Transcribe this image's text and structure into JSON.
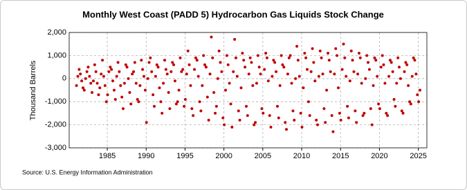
{
  "chart_data": {
    "type": "scatter",
    "title": "Monthly West Coast (PADD 5) Hydrocarbon Gas Liquids Stock Change",
    "y_label": "Thousand Barrels",
    "source": "Source: U.S. Energy Information Administration",
    "color": "#c00000",
    "grid": true,
    "xlim": [
      1980.1,
      2026.1
    ],
    "xticks": [
      1985,
      1990,
      1995,
      2000,
      2005,
      2010,
      2015,
      2020,
      2025
    ],
    "ylim": [
      -3000,
      2000
    ],
    "yticks": [
      {
        "value": -3000,
        "label": "-3,000"
      },
      {
        "value": -2000,
        "label": "-2,000"
      },
      {
        "value": -1000,
        "label": "-1,000"
      },
      0,
      {
        "value": 1000,
        "label": "1,000"
      },
      {
        "value": 2000,
        "label": "2,000"
      }
    ],
    "x": [
      1981.04,
      1981.21,
      1981.38,
      1981.54,
      1981.71,
      1981.88,
      1982.04,
      1982.21,
      1982.38,
      1982.54,
      1982.71,
      1982.88,
      1983.04,
      1983.21,
      1983.38,
      1983.54,
      1983.71,
      1983.88,
      1984.04,
      1984.21,
      1984.38,
      1984.54,
      1984.71,
      1984.88,
      1985.04,
      1985.21,
      1985.38,
      1985.54,
      1985.71,
      1985.88,
      1986.04,
      1986.21,
      1986.38,
      1986.54,
      1986.71,
      1986.88,
      1987.04,
      1987.21,
      1987.38,
      1987.54,
      1987.71,
      1987.88,
      1988.04,
      1988.21,
      1988.38,
      1988.54,
      1988.71,
      1988.88,
      1989.04,
      1989.21,
      1989.38,
      1989.54,
      1989.71,
      1989.88,
      1990.04,
      1990.21,
      1990.38,
      1990.54,
      1990.71,
      1990.88,
      1991.04,
      1991.21,
      1991.38,
      1991.54,
      1991.71,
      1991.88,
      1992.04,
      1992.21,
      1992.38,
      1992.54,
      1992.71,
      1992.88,
      1993.04,
      1993.21,
      1993.38,
      1993.54,
      1993.71,
      1993.88,
      1994.04,
      1994.21,
      1994.38,
      1994.54,
      1994.71,
      1994.88,
      1995.04,
      1995.21,
      1995.38,
      1995.54,
      1995.71,
      1995.88,
      1996.04,
      1996.21,
      1996.38,
      1996.54,
      1996.71,
      1996.88,
      1997.04,
      1997.21,
      1997.38,
      1997.54,
      1997.71,
      1997.88,
      1998.04,
      1998.21,
      1998.38,
      1998.54,
      1998.71,
      1998.88,
      1999.04,
      1999.21,
      1999.38,
      1999.54,
      1999.71,
      1999.88,
      2000.04,
      2000.21,
      2000.38,
      2000.54,
      2000.71,
      2000.88,
      2001.04,
      2001.21,
      2001.38,
      2001.54,
      2001.71,
      2001.88,
      2002.04,
      2002.21,
      2002.38,
      2002.54,
      2002.71,
      2002.88,
      2003.04,
      2003.21,
      2003.38,
      2003.54,
      2003.71,
      2003.88,
      2004.04,
      2004.21,
      2004.38,
      2004.54,
      2004.71,
      2004.88,
      2005.04,
      2005.21,
      2005.38,
      2005.54,
      2005.71,
      2005.88,
      2006.04,
      2006.21,
      2006.38,
      2006.54,
      2006.71,
      2006.88,
      2007.04,
      2007.21,
      2007.38,
      2007.54,
      2007.71,
      2007.88,
      2008.04,
      2008.21,
      2008.38,
      2008.54,
      2008.71,
      2008.88,
      2009.04,
      2009.21,
      2009.38,
      2009.54,
      2009.71,
      2009.88,
      2010.04,
      2010.21,
      2010.38,
      2010.54,
      2010.71,
      2010.88,
      2011.04,
      2011.21,
      2011.38,
      2011.54,
      2011.71,
      2011.88,
      2012.04,
      2012.21,
      2012.38,
      2012.54,
      2012.71,
      2012.88,
      2013.04,
      2013.21,
      2013.38,
      2013.54,
      2013.71,
      2013.88,
      2014.04,
      2014.21,
      2014.38,
      2014.54,
      2014.71,
      2014.88,
      2015.04,
      2015.21,
      2015.38,
      2015.54,
      2015.71,
      2015.88,
      2016.04,
      2016.21,
      2016.38,
      2016.54,
      2016.71,
      2016.88,
      2017.04,
      2017.21,
      2017.38,
      2017.54,
      2017.71,
      2017.88,
      2018.04,
      2018.21,
      2018.38,
      2018.54,
      2018.71,
      2018.88,
      2019.04,
      2019.21,
      2019.38,
      2019.54,
      2019.71,
      2019.88,
      2020.04,
      2020.21,
      2020.38,
      2020.54,
      2020.71,
      2020.88,
      2021.04,
      2021.21,
      2021.38,
      2021.54,
      2021.71,
      2021.88,
      2022.04,
      2022.21,
      2022.38,
      2022.54,
      2022.71,
      2022.88,
      2023.04,
      2023.21,
      2023.38,
      2023.54,
      2023.71,
      2023.88,
      2024.04,
      2024.21,
      2024.38,
      2024.54,
      2024.71,
      2024.88,
      2025.04,
      2025.21
    ],
    "values": [
      -300,
      100,
      400,
      200,
      -100,
      -400,
      -500,
      0,
      300,
      500,
      100,
      -200,
      -600,
      -100,
      600,
      300,
      -200,
      -700,
      -400,
      200,
      800,
      100,
      -300,
      -1000,
      -700,
      300,
      500,
      400,
      -100,
      -500,
      -900,
      100,
      700,
      300,
      -300,
      -800,
      -1300,
      -200,
      600,
      500,
      0,
      -600,
      -1100,
      200,
      300,
      700,
      -200,
      -900,
      -1000,
      -300,
      800,
      400,
      100,
      -500,
      -1900,
      0,
      700,
      900,
      300,
      -700,
      -1200,
      100,
      600,
      500,
      -400,
      -1000,
      -1500,
      -200,
      800,
      400,
      200,
      -600,
      -1300,
      300,
      700,
      600,
      -100,
      -1100,
      -1000,
      -500,
      900,
      300,
      400,
      -1200,
      -900,
      200,
      1200,
      600,
      -300,
      -1300,
      -1600,
      400,
      900,
      800,
      100,
      -1000,
      -1400,
      -300,
      1000,
      600,
      500,
      -800,
      -1800,
      200,
      1800,
      900,
      -600,
      -1500,
      -1200,
      0,
      1200,
      700,
      300,
      -1700,
      -2000,
      -500,
      1000,
      600,
      -200,
      -1100,
      -2100,
      300,
      1700,
      900,
      100,
      -1400,
      -1800,
      -400,
      1100,
      800,
      500,
      -1200,
      -1600,
      200,
      900,
      700,
      -300,
      -2000,
      -1900,
      -200,
      1000,
      500,
      200,
      -1300,
      -1500,
      400,
      1100,
      900,
      -100,
      -1600,
      -2100,
      100,
      800,
      700,
      300,
      -1200,
      -1700,
      -300,
      1000,
      600,
      500,
      -1900,
      -2200,
      200,
      900,
      1000,
      -200,
      -1400,
      -1800,
      0,
      1400,
      800,
      100,
      -1500,
      -2100,
      -400,
      1100,
      900,
      400,
      -1000,
      -1600,
      300,
      1300,
      700,
      -100,
      -1800,
      -2000,
      100,
      1200,
      900,
      200,
      -1300,
      -1900,
      -500,
      1100,
      800,
      300,
      -1600,
      -2300,
      200,
      1300,
      1000,
      -400,
      -1500,
      -1800,
      400,
      1500,
      900,
      100,
      -1200,
      -1700,
      -100,
      1200,
      800,
      300,
      -1400,
      -1900,
      200,
      1100,
      900,
      -200,
      -1600,
      -1500,
      0,
      1000,
      700,
      400,
      -1300,
      -2000,
      -300,
      900,
      800,
      100,
      -1100,
      -1300,
      500,
      1000,
      600,
      -200,
      -1500,
      -1600,
      100,
      800,
      700,
      300,
      -900,
      -1200,
      -200,
      900,
      500,
      0,
      -1400,
      -1500,
      300,
      700,
      600,
      -300,
      -1000,
      -1100,
      100,
      900,
      800,
      200,
      -700,
      -1000,
      -500
    ]
  }
}
